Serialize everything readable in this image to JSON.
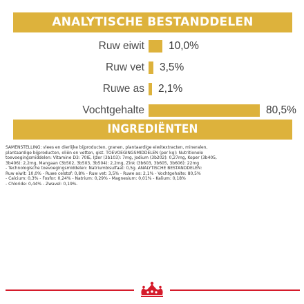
{
  "analysis": {
    "title": "ANALYTISCHE BESTANDDELEN",
    "rows": [
      {
        "label": "Ruw eiwit",
        "value": "10,0%",
        "amount": 10.0
      },
      {
        "label": "Ruw vet",
        "value": "3,5%",
        "amount": 3.5
      },
      {
        "label": "Ruwe as",
        "value": "2,1%",
        "amount": 2.1
      },
      {
        "label": "Vochtgehalte",
        "value": "80,5%",
        "amount": 80.5
      }
    ]
  },
  "ingredients": {
    "title": "INGREDIËNTEN",
    "lines": [
      "SAMENSTELLING: vlees en dierlijke bijproducten, granen, plantaardige eiwitextracten, mineralen,",
      "plantaardige bijproducten, oliën en vetten, gist. TOEVOEGINGSMIDDELEN (per kg): Nutritionele",
      "toevoegingsmiddelen: Vitamine D3: 70IE, IJzer (3b103): 7mg, Jodium (3b202): 0,27mg, Koper (3b405,",
      "3b406): 2,2mg, Mangaan (3b502, 3b503, 3b504): 2,2mg, Zink (3b603, 3b605, 3b606): 22mg",
      "- Technologische toevoegingsmiddelen: Natriumbisulfaat: 0,5g. ANALYTISCHE BESTANDDELEN:",
      "Ruw eiwit: 10,0% - Ruwe celstof: 0,8% - Ruw vet: 3,5% - Ruwe as: 2,1% - Vochtgehalte: 80,5%",
      "- Calcium: 0,3% - Fosfor: 0,24% - Natrium: 0,29% - Magnesium: 0,01% - Kalium: 0,18%",
      "- Chloride: 0,44% - Zwavel: 0,19%."
    ]
  },
  "colors": {
    "accent": "#ddb23c",
    "brand_red": "#d51b2b"
  },
  "icons": {
    "logo": "royal-canin-crown-logo"
  }
}
